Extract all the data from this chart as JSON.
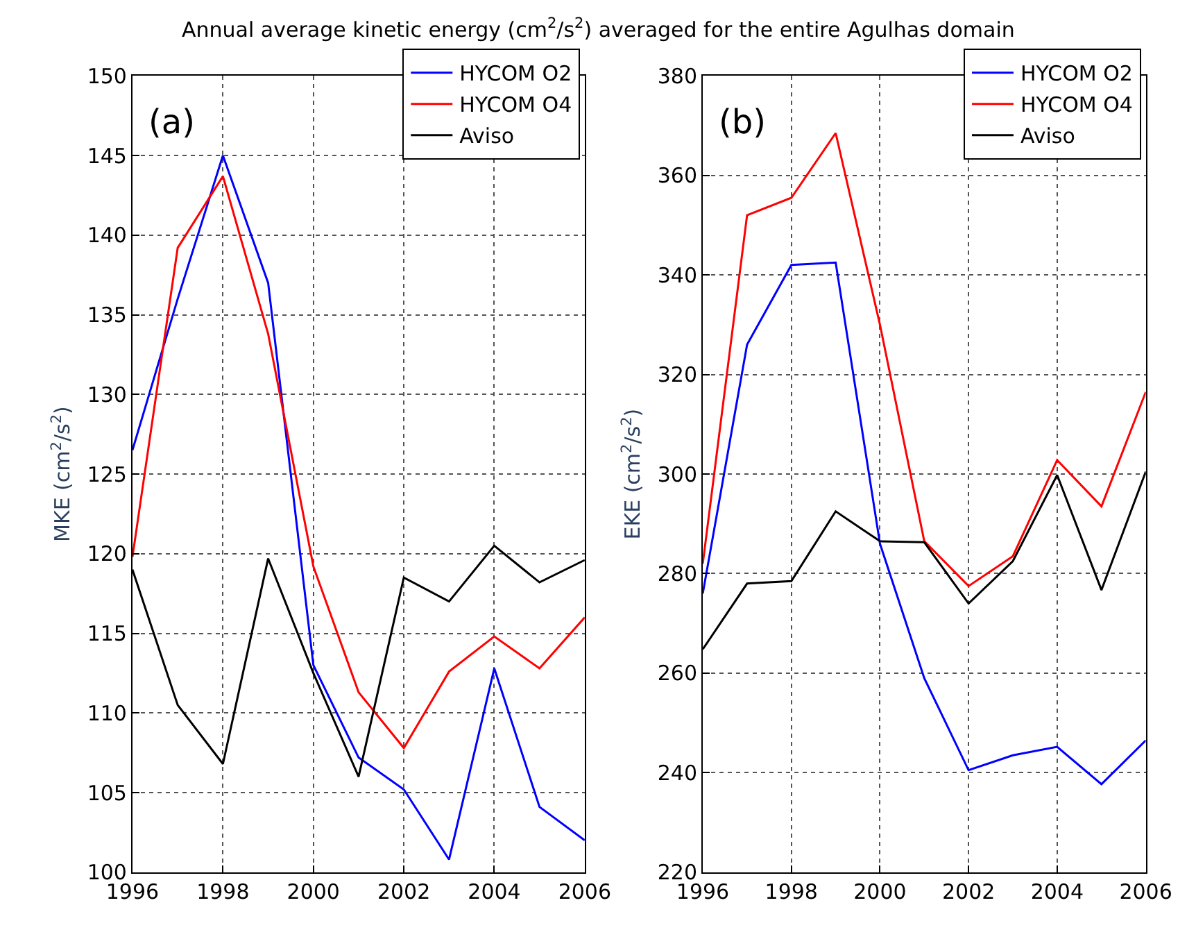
{
  "chart_data": [
    {
      "type": "line",
      "title": "Annual average kinetic energy (cm$^{2}$/s$^{2}$) averaged for the entire Agulhas domain",
      "ylabel": "MKE (cm$^{2}$/s$^{2}$)",
      "annotations": [
        "(a)"
      ],
      "x": [
        1996,
        1997,
        1998,
        1999,
        2000,
        2001,
        2002,
        2003,
        2004,
        2005,
        2006
      ],
      "xlim": [
        1996,
        2006
      ],
      "xticks": [
        1996,
        1998,
        2000,
        2002,
        2004,
        2006
      ],
      "ylim": [
        100,
        150
      ],
      "yticks": [
        100,
        105,
        110,
        115,
        120,
        125,
        130,
        135,
        140,
        145,
        150
      ],
      "grid": true,
      "legend": "top right",
      "line_style": "solid",
      "series": [
        {
          "name": "HYCOM O2",
          "color": "#0000ff",
          "values": [
            126.5,
            136,
            145,
            137,
            113,
            107.2,
            105.2,
            100.8,
            112.8,
            104.1,
            102
          ]
        },
        {
          "name": "HYCOM O4",
          "color": "#ff0000",
          "values": [
            119.8,
            139.2,
            143.7,
            133.8,
            119.2,
            111.3,
            107.8,
            112.6,
            114.8,
            112.8,
            116
          ]
        },
        {
          "name": "Aviso",
          "color": "#000000",
          "values": [
            119,
            110.5,
            106.8,
            119.7,
            112.5,
            106,
            118.5,
            117,
            120.5,
            118.2,
            119.6
          ]
        }
      ]
    },
    {
      "type": "line",
      "ylabel": "EKE (cm$^{2}$/s$^{2}$)",
      "annotations": [
        "(b)"
      ],
      "x": [
        1996,
        1997,
        1998,
        1999,
        2000,
        2001,
        2002,
        2003,
        2004,
        2005,
        2006
      ],
      "xlim": [
        1996,
        2006
      ],
      "xticks": [
        1996,
        1998,
        2000,
        2002,
        2004,
        2006
      ],
      "ylim": [
        220,
        380
      ],
      "yticks": [
        220,
        240,
        260,
        280,
        300,
        320,
        340,
        360,
        380
      ],
      "grid": true,
      "legend": "top right",
      "line_style": "solid",
      "series": [
        {
          "name": "HYCOM O2",
          "color": "#0000ff",
          "values": [
            276,
            326,
            342,
            342.5,
            286,
            259,
            240.5,
            243.5,
            245.2,
            237.7,
            246.5
          ]
        },
        {
          "name": "HYCOM O4",
          "color": "#ff0000",
          "values": [
            282,
            352,
            355.5,
            368.5,
            330,
            286.5,
            277.5,
            283.5,
            302.8,
            293.5,
            316.5
          ]
        },
        {
          "name": "Aviso",
          "color": "#000000",
          "values": [
            264.8,
            278,
            278.5,
            292.5,
            286.5,
            286.3,
            274,
            282.5,
            299.8,
            276.7,
            300.5
          ]
        }
      ]
    }
  ]
}
